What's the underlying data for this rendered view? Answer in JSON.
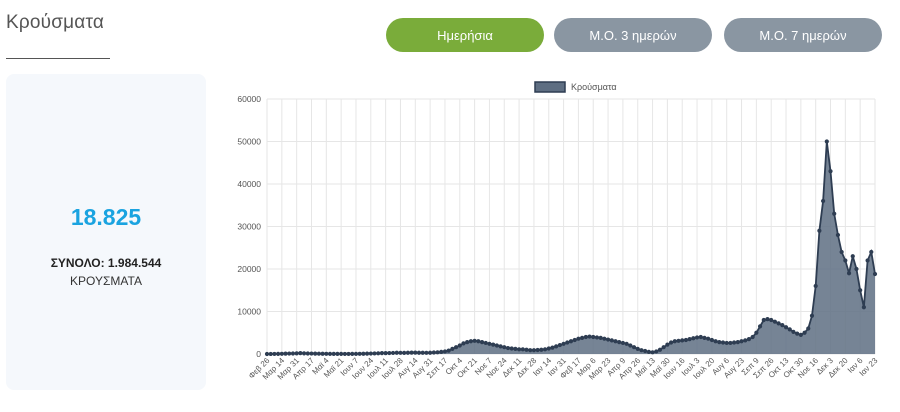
{
  "title": "Κρούσματα",
  "tabs": [
    {
      "label": "Ημερήσια",
      "active": true
    },
    {
      "label": "Μ.Ο. 3 ημερών",
      "active": false
    },
    {
      "label": "Μ.Ο. 7 ημερών",
      "active": false
    }
  ],
  "summary": {
    "value": "18.825",
    "total": "ΣΥΝΟΛΟ: 1.984.544",
    "unit": "ΚΡΟΥΣΜΑΤΑ"
  },
  "colors": {
    "active_tab": "#7aac3a",
    "inactive_tab": "#8a96a2",
    "accent_value": "#1aa3e0",
    "series_fill": "#5e6e82",
    "series_line": "#2e3d52",
    "grid": "#e6e6e6"
  },
  "chart_data": {
    "type": "area",
    "legend": {
      "label": "Κρούσματα",
      "position": "top-center"
    },
    "ylim": [
      0,
      60000
    ],
    "yticks": [
      0,
      10000,
      20000,
      30000,
      40000,
      50000,
      60000
    ],
    "grid": true,
    "xtick_labels": [
      "Φεβ 26",
      "Μαρ 14",
      "Μαρ 31",
      "Απρ 17",
      "Μαϊ 4",
      "Μαϊ 21",
      "Ιουν 7",
      "Ιουν 24",
      "Ιουλ 11",
      "Ιουλ 28",
      "Αυγ 14",
      "Αυγ 31",
      "Σεπ 17",
      "Οκτ 4",
      "Οκτ 21",
      "Νοε 7",
      "Νοε 24",
      "Δεκ 11",
      "Δεκ 28",
      "Ιαν 14",
      "Ιαν 31",
      "Φεβ 17",
      "Μαρ 6",
      "Μαρ 23",
      "Απρ 9",
      "Απρ 26",
      "Μαϊ 13",
      "Μαϊ 30",
      "Ιουν 16",
      "Ιουλ 3",
      "Ιουλ 20",
      "Αυγ 6",
      "Αυγ 23",
      "Σεπ 9",
      "Σεπ 26",
      "Οκτ 13",
      "Οκτ 30",
      "Νοε 16",
      "Δεκ 3",
      "Δεκ 20",
      "Ιαν 6",
      "Ιαν 23"
    ],
    "values": [
      0,
      10,
      20,
      30,
      50,
      80,
      100,
      120,
      150,
      200,
      150,
      120,
      100,
      80,
      70,
      60,
      50,
      40,
      30,
      25,
      25,
      20,
      20,
      30,
      40,
      50,
      60,
      80,
      100,
      130,
      160,
      200,
      200,
      220,
      250,
      300,
      280,
      260,
      300,
      320,
      320,
      300,
      300,
      280,
      300,
      350,
      400,
      500,
      600,
      800,
      1200,
      1600,
      2000,
      2500,
      2800,
      3000,
      3100,
      3000,
      2800,
      2600,
      2400,
      2200,
      2000,
      1800,
      1600,
      1400,
      1300,
      1200,
      1100,
      1100,
      1000,
      900,
      900,
      950,
      1000,
      1100,
      1300,
      1500,
      1800,
      2100,
      2400,
      2700,
      3000,
      3300,
      3600,
      3800,
      4000,
      4100,
      4000,
      3900,
      3800,
      3600,
      3400,
      3200,
      3000,
      2800,
      2600,
      2400,
      2000,
      1600,
      1200,
      900,
      700,
      500,
      400,
      600,
      1000,
      1600,
      2200,
      2700,
      3000,
      3100,
      3200,
      3300,
      3500,
      3700,
      3900,
      4000,
      3800,
      3600,
      3300,
      3000,
      2800,
      2700,
      2600,
      2600,
      2700,
      2800,
      3000,
      3200,
      3500,
      4000,
      5000,
      6500,
      8000,
      8200,
      8000,
      7600,
      7200,
      6800,
      6300,
      5800,
      5200,
      4800,
      4500,
      5000,
      6000,
      9000,
      16000,
      29000,
      36000,
      50000,
      43000,
      33000,
      28000,
      24000,
      22000,
      19000,
      23000,
      20000,
      15000,
      11000,
      22000,
      24000,
      18825
    ]
  }
}
